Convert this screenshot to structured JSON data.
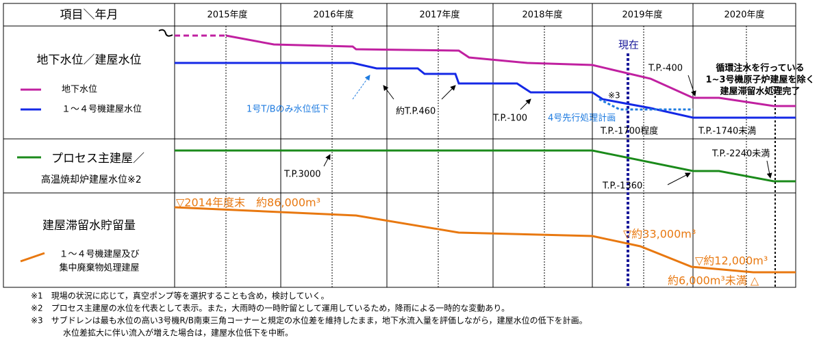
{
  "header": {
    "item": "項目＼年月",
    "years": [
      "2015年度",
      "2016年度",
      "2017年度",
      "2018年度",
      "2019年度",
      "2020年度"
    ]
  },
  "water_level": {
    "title": "地下水位／建屋水位",
    "legend": [
      "地下水位",
      "１～４号機建屋水位"
    ],
    "annotations": {
      "now": "現在",
      "completion": [
        "循環注水を行っている",
        "1~3号機原子炉建屋を除く",
        "建屋滞留水処理完了"
      ],
      "marker": "▽",
      "tp_m400": "T.P.-400",
      "ref3": "※3",
      "tp460": "約T.P.460",
      "unit1": "1号T/Bのみ水位低下",
      "tp_m100": "T.P.-100",
      "unit4": "4号先行処理計画",
      "tp_m1700": "T.P.-1700程度",
      "tp_m1740": "T.P.-1740未満"
    }
  },
  "process": {
    "title": [
      "プロセス主建屋／",
      "高温焼却炉建屋水位※2"
    ],
    "annotations": {
      "tp_m2240": "T.P.-2240未満",
      "tp3000": "T.P.3000",
      "tp_m1360": "T.P.-1360"
    }
  },
  "storage": {
    "title": "建屋滞留水貯留量",
    "legend": [
      "１～４号機建屋及び",
      "集中廃棄物処理建屋"
    ],
    "annotations": {
      "v2014": "▽2014年度末　約86,000m³",
      "v33000": "▽約33,000m³",
      "v12000": "▽約12,000m³",
      "v6000": "約6,000m³未満 △"
    }
  },
  "notes": [
    "※1　現場の状況に応じて，真空ポンプ等を選択することも含め，検討していく。",
    "※2　プロセス主建屋の水位を代表として表示。また，大雨時の一時貯留として運用しているため，降雨による一時的な変動あり。",
    "※3　サブドレンは最も水位の高い3号機R/B南東三角コーナーと規定の水位差を維持したまま，地下水流入量を評価しながら，建屋水位の低下を計画。",
    "水位差拡大に伴い流入が増えた場合は，建屋水位低下を中断。"
  ]
}
